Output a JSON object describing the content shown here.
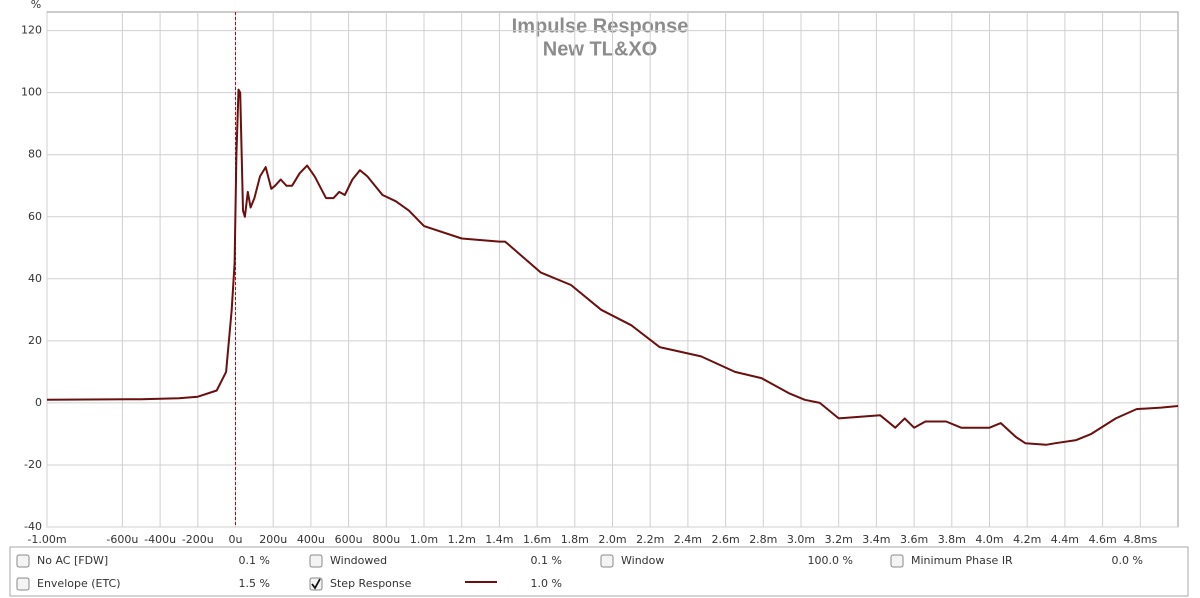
{
  "chart_data": {
    "type": "line",
    "title": "Impulse Response",
    "subtitle": "New TL&XO",
    "y_label": "%",
    "xlim": [
      -1.0,
      5.0
    ],
    "ylim": [
      -40,
      126
    ],
    "xticks": [
      {
        "value": -1.0,
        "label": "-1.00m"
      },
      {
        "value": -0.6,
        "label": "-600u"
      },
      {
        "value": -0.4,
        "label": "-400u"
      },
      {
        "value": -0.2,
        "label": "-200u"
      },
      {
        "value": 0,
        "label": "0u"
      },
      {
        "value": 0.2,
        "label": "200u"
      },
      {
        "value": 0.4,
        "label": "400u"
      },
      {
        "value": 0.6,
        "label": "600u"
      },
      {
        "value": 0.8,
        "label": "800u"
      },
      {
        "value": 1.0,
        "label": "1.0m"
      },
      {
        "value": 1.2,
        "label": "1.2m"
      },
      {
        "value": 1.4,
        "label": "1.4m"
      },
      {
        "value": 1.6,
        "label": "1.6m"
      },
      {
        "value": 1.8,
        "label": "1.8m"
      },
      {
        "value": 2.0,
        "label": "2.0m"
      },
      {
        "value": 2.2,
        "label": "2.2m"
      },
      {
        "value": 2.4,
        "label": "2.4m"
      },
      {
        "value": 2.6,
        "label": "2.6m"
      },
      {
        "value": 2.8,
        "label": "2.8m"
      },
      {
        "value": 3.0,
        "label": "3.0m"
      },
      {
        "value": 3.2,
        "label": "3.2m"
      },
      {
        "value": 3.4,
        "label": "3.4m"
      },
      {
        "value": 3.6,
        "label": "3.6m"
      },
      {
        "value": 3.8,
        "label": "3.8m"
      },
      {
        "value": 4.0,
        "label": "4.0m"
      },
      {
        "value": 4.2,
        "label": "4.2m"
      },
      {
        "value": 4.4,
        "label": "4.4m"
      },
      {
        "value": 4.6,
        "label": "4.6m"
      },
      {
        "value": 4.8,
        "label": "4.8ms"
      }
    ],
    "yticks": [
      -40,
      -20,
      0,
      20,
      40,
      60,
      80,
      100,
      120
    ],
    "grid": true,
    "marker_x": 0,
    "marker_color": "#cc0000",
    "series": [
      {
        "name": "Step Response",
        "color": "#6b0f0f",
        "x": [
          -1.0,
          -0.5,
          -0.3,
          -0.2,
          -0.1,
          -0.05,
          -0.02,
          -0.005,
          0.005,
          0.016,
          0.025,
          0.04,
          0.05,
          0.065,
          0.08,
          0.1,
          0.13,
          0.16,
          0.19,
          0.21,
          0.24,
          0.27,
          0.3,
          0.34,
          0.38,
          0.42,
          0.48,
          0.52,
          0.55,
          0.58,
          0.62,
          0.66,
          0.7,
          0.74,
          0.78,
          0.85,
          0.92,
          1.0,
          1.2,
          1.4,
          1.43,
          1.62,
          1.78,
          1.94,
          2.1,
          2.25,
          2.47,
          2.65,
          2.79,
          2.94,
          3.02,
          3.1,
          3.2,
          3.42,
          3.5,
          3.55,
          3.6,
          3.66,
          3.77,
          3.85,
          4.0,
          4.06,
          4.14,
          4.19,
          4.3,
          4.35,
          4.46,
          4.54,
          4.67,
          4.78,
          4.91,
          5.0
        ],
        "values": [
          1,
          1.2,
          1.5,
          2,
          4,
          10,
          30,
          45,
          80,
          101,
          100,
          62,
          60,
          68,
          63,
          66,
          73,
          76,
          69,
          70,
          72,
          70,
          70,
          74,
          76.5,
          73,
          66,
          66,
          68,
          67,
          72,
          75,
          73,
          70,
          67,
          65,
          62,
          57,
          53,
          52,
          52,
          42,
          38,
          30,
          25,
          18,
          15,
          10,
          8,
          3,
          1,
          0,
          -5,
          -4,
          -8,
          -5,
          -8,
          -6,
          -6,
          -8,
          -8,
          -6.5,
          -11,
          -13,
          -13.5,
          -13,
          -12,
          -10,
          -5,
          -2,
          -1.5,
          -1
        ]
      }
    ]
  },
  "controls": [
    {
      "label": "No AC [FDW]",
      "value": "0.1 %",
      "checked": false,
      "color": "#c0392b"
    },
    {
      "label": "Windowed",
      "value": "0.1 %",
      "checked": false,
      "color": "#c0392b"
    },
    {
      "label": "Window",
      "value": "100.0 %",
      "checked": false,
      "color": "#1f3fa8"
    },
    {
      "label": "Minimum Phase IR",
      "value": "0.0 %",
      "checked": false,
      "color": "#888888"
    },
    {
      "label": "Envelope (ETC)",
      "value": "1.5 %",
      "checked": false,
      "color": "#c0392b"
    },
    {
      "label": "Step Response",
      "value": "1.0 %",
      "checked": true,
      "color": "#222222"
    }
  ]
}
